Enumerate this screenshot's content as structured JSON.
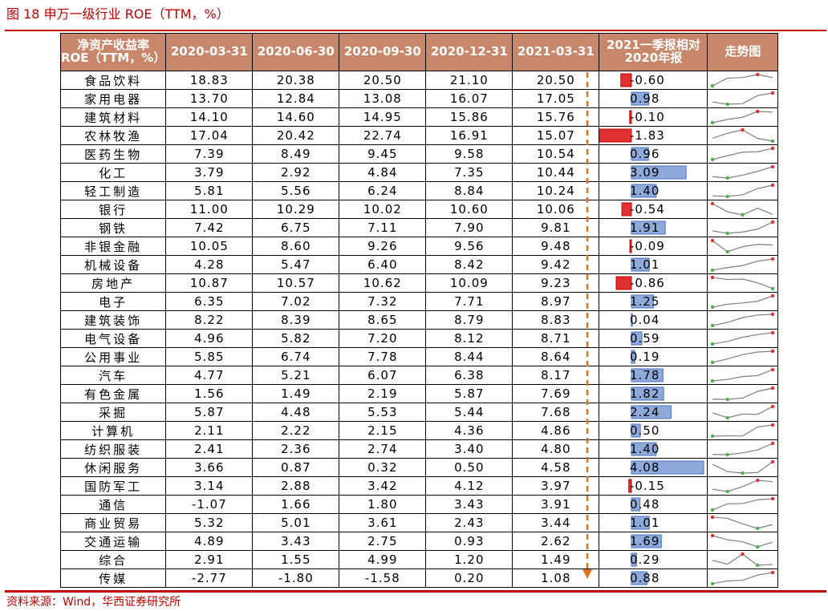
{
  "title": "图 18 申万一级行业 ROE（TTM，%）",
  "source": "资料来源：Wind，华西证券研究所",
  "headers": {
    "col0": [
      "净资产收益率",
      "ROE（TTM，%）"
    ],
    "dates": [
      "2020-03-31",
      "2020-06-30",
      "2020-09-30",
      "2020-12-31",
      "2021-03-31"
    ],
    "diff": [
      "2021一季报相对",
      "2020年报"
    ],
    "trend": "走势图"
  },
  "colors": {
    "header_bg": "#c8876a",
    "title": "#c00000",
    "pos_bar": "#8eaadb",
    "neg_bar": "#e03030",
    "line": "#7f7f7f",
    "max_dot": "#e03030",
    "min_dot": "#4caf50"
  },
  "chart_data": {
    "type": "table",
    "rows": [
      {
        "industry": "食品饮料",
        "values": [
          "18.83",
          "20.38",
          "20.50",
          "21.10",
          "20.50"
        ],
        "diff": "-0.60"
      },
      {
        "industry": "家用电器",
        "values": [
          "13.70",
          "12.84",
          "13.08",
          "16.07",
          "17.05"
        ],
        "diff": "0.98"
      },
      {
        "industry": "建筑材料",
        "values": [
          "14.10",
          "14.60",
          "14.95",
          "15.86",
          "15.76"
        ],
        "diff": "-0.10"
      },
      {
        "industry": "农林牧渔",
        "values": [
          "17.04",
          "20.42",
          "22.74",
          "16.91",
          "15.07"
        ],
        "diff": "-1.83"
      },
      {
        "industry": "医药生物",
        "values": [
          "7.39",
          "8.49",
          "9.45",
          "9.58",
          "10.54"
        ],
        "diff": "0.96"
      },
      {
        "industry": "化工",
        "values": [
          "3.79",
          "2.92",
          "4.84",
          "7.35",
          "10.44"
        ],
        "diff": "3.09"
      },
      {
        "industry": "轻工制造",
        "values": [
          "5.81",
          "5.56",
          "6.24",
          "8.84",
          "10.24"
        ],
        "diff": "1.40"
      },
      {
        "industry": "银行",
        "values": [
          "11.00",
          "10.29",
          "10.02",
          "10.60",
          "10.06"
        ],
        "diff": "-0.54"
      },
      {
        "industry": "钢铁",
        "values": [
          "7.42",
          "6.75",
          "7.11",
          "7.90",
          "9.81"
        ],
        "diff": "1.91"
      },
      {
        "industry": "非银金融",
        "values": [
          "10.05",
          "8.60",
          "9.26",
          "9.56",
          "9.48"
        ],
        "diff": "-0.09"
      },
      {
        "industry": "机械设备",
        "values": [
          "4.28",
          "5.47",
          "6.40",
          "8.42",
          "9.42"
        ],
        "diff": "1.01"
      },
      {
        "industry": "房地产",
        "values": [
          "10.87",
          "10.57",
          "10.62",
          "10.09",
          "9.23"
        ],
        "diff": "-0.86"
      },
      {
        "industry": "电子",
        "values": [
          "6.35",
          "7.02",
          "7.32",
          "7.71",
          "8.97"
        ],
        "diff": "1.25"
      },
      {
        "industry": "建筑装饰",
        "values": [
          "8.22",
          "8.39",
          "8.65",
          "8.79",
          "8.83"
        ],
        "diff": "0.04"
      },
      {
        "industry": "电气设备",
        "values": [
          "4.96",
          "5.82",
          "7.20",
          "8.12",
          "8.71"
        ],
        "diff": "0.59"
      },
      {
        "industry": "公用事业",
        "values": [
          "5.85",
          "6.74",
          "7.78",
          "8.44",
          "8.64"
        ],
        "diff": "0.19"
      },
      {
        "industry": "汽车",
        "values": [
          "4.77",
          "5.21",
          "6.07",
          "6.38",
          "8.17"
        ],
        "diff": "1.78"
      },
      {
        "industry": "有色金属",
        "values": [
          "1.56",
          "1.49",
          "2.19",
          "5.87",
          "7.69"
        ],
        "diff": "1.82"
      },
      {
        "industry": "采掘",
        "values": [
          "5.87",
          "4.48",
          "5.53",
          "5.44",
          "7.68"
        ],
        "diff": "2.24"
      },
      {
        "industry": "计算机",
        "values": [
          "2.11",
          "2.22",
          "2.15",
          "4.36",
          "4.86"
        ],
        "diff": "0.50"
      },
      {
        "industry": "纺织服装",
        "values": [
          "2.41",
          "2.36",
          "2.74",
          "3.40",
          "4.80"
        ],
        "diff": "1.40"
      },
      {
        "industry": "休闲服务",
        "values": [
          "3.66",
          "0.87",
          "0.32",
          "0.50",
          "4.58"
        ],
        "diff": "4.08"
      },
      {
        "industry": "国防军工",
        "values": [
          "3.14",
          "2.88",
          "3.42",
          "4.12",
          "3.97"
        ],
        "diff": "-0.15"
      },
      {
        "industry": "通信",
        "values": [
          "-1.07",
          "1.66",
          "1.80",
          "3.43",
          "3.91"
        ],
        "diff": "0.48"
      },
      {
        "industry": "商业贸易",
        "values": [
          "5.32",
          "5.01",
          "3.61",
          "2.43",
          "3.44"
        ],
        "diff": "1.01"
      },
      {
        "industry": "交通运输",
        "values": [
          "4.89",
          "3.43",
          "2.75",
          "0.93",
          "2.62"
        ],
        "diff": "1.69"
      },
      {
        "industry": "综合",
        "values": [
          "2.91",
          "1.55",
          "4.99",
          "1.20",
          "1.49"
        ],
        "diff": "0.29"
      },
      {
        "industry": "传媒",
        "values": [
          "-2.77",
          "-1.80",
          "-1.58",
          "0.20",
          "1.08"
        ],
        "diff": "0.88"
      }
    ]
  }
}
